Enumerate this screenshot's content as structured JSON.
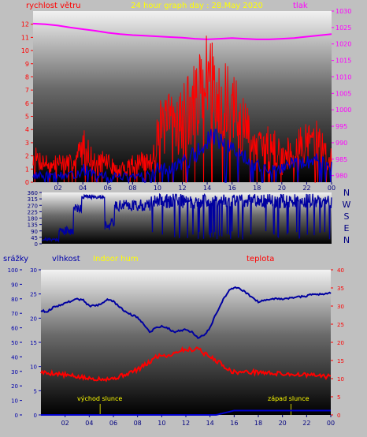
{
  "chart_data": [
    {
      "type": "line",
      "title": "24 hour graph day : 28.May 2020",
      "ylabel_left": "rychlost větru",
      "ylabel_right": "tlak",
      "x_ticks": [
        "02",
        "04",
        "06",
        "08",
        "10",
        "12",
        "14",
        "16",
        "18",
        "20",
        "22",
        "00"
      ],
      "x_range": [
        0,
        24
      ],
      "ylim_left": [
        0,
        13
      ],
      "yticks_left": [
        0,
        1,
        2,
        3,
        4,
        5,
        6,
        7,
        8,
        9,
        10,
        11,
        12
      ],
      "ylim_right": [
        978,
        1030
      ],
      "yticks_right": [
        980,
        985,
        990,
        995,
        1000,
        1005,
        1010,
        1015,
        1020,
        1025,
        1030
      ],
      "series": [
        {
          "role": "pressure",
          "axis": "right",
          "color": "#ff00ff",
          "x": [
            0,
            1,
            2,
            3,
            4,
            5,
            6,
            7,
            8,
            9,
            10,
            11,
            12,
            13,
            14,
            15,
            16,
            17,
            18,
            19,
            20,
            21,
            22,
            23,
            24
          ],
          "values": [
            1026.2,
            1026,
            1025.6,
            1025,
            1024.5,
            1024,
            1023.4,
            1023,
            1022.7,
            1022.5,
            1022.3,
            1022.1,
            1021.9,
            1021.6,
            1021.4,
            1021.6,
            1021.8,
            1021.6,
            1021.4,
            1021.4,
            1021.6,
            1021.8,
            1022.2,
            1022.6,
            1023
          ]
        },
        {
          "role": "wind_gust",
          "axis": "left",
          "color": "#ff0000",
          "seed": 7,
          "x": [
            0,
            1,
            1.5,
            2,
            3,
            3.5,
            4,
            4.5,
            5,
            5.5,
            6,
            6.5,
            7,
            8,
            9,
            9.5,
            10,
            11,
            12,
            13,
            13.5,
            14,
            14.5,
            15,
            15.5,
            16,
            17,
            17.5,
            18,
            18.5,
            19,
            20,
            21,
            22,
            22.5,
            23,
            24
          ],
          "values": [
            1.8,
            1.5,
            1.2,
            1.5,
            1.5,
            1.8,
            2.8,
            2.2,
            1.3,
            1.6,
            1.6,
            1,
            0.8,
            1.5,
            1.5,
            1.4,
            4,
            4.5,
            5,
            6,
            7,
            8.5,
            7,
            6.5,
            6,
            5.5,
            4,
            3.5,
            2.5,
            2.5,
            3,
            2,
            2.5,
            3,
            3.5,
            3,
            1.5
          ],
          "amp": [
            1,
            0.8,
            0.6,
            0.8,
            0.6,
            0.8,
            1.5,
            1,
            0.8,
            0.8,
            0.8,
            0.6,
            0.6,
            0.8,
            0.8,
            0.8,
            2,
            2.5,
            3,
            3,
            3,
            3,
            3,
            3,
            3,
            3,
            2.5,
            2,
            1.5,
            1.5,
            1.5,
            1.5,
            1.5,
            1.5,
            1.5,
            1.5,
            1
          ]
        },
        {
          "role": "wind_avg",
          "axis": "left",
          "color": "#0000cc",
          "seed": 13,
          "x": [
            0,
            2,
            3,
            3.5,
            4,
            4.5,
            5,
            6,
            8,
            9,
            10,
            11,
            12,
            13,
            14,
            14.5,
            15,
            16,
            17,
            18,
            19,
            20,
            21,
            22,
            23,
            24
          ],
          "values": [
            0.5,
            0.5,
            0.5,
            0.6,
            1,
            0.8,
            0.5,
            0.5,
            0.4,
            0.5,
            1,
            1,
            1.5,
            2,
            3,
            3.5,
            3,
            2.5,
            2,
            1.2,
            1,
            1,
            1.5,
            1.5,
            1.8,
            1.5
          ],
          "amp": [
            0.3,
            0.3,
            0.3,
            0.3,
            0.5,
            0.4,
            0.3,
            0.3,
            0.3,
            0.3,
            0.5,
            0.5,
            0.6,
            0.8,
            0.8,
            0.8,
            0.8,
            0.6,
            0.6,
            0.5,
            0.4,
            0.4,
            0.5,
            0.5,
            0.5,
            0.5
          ]
        }
      ]
    },
    {
      "type": "line",
      "title": "",
      "right_labels": [
        "N",
        "W",
        "S",
        "E",
        "N"
      ],
      "x_range": [
        0,
        24
      ],
      "ylim": [
        0,
        360
      ],
      "yticks": [
        0,
        45,
        90,
        135,
        180,
        225,
        270,
        315,
        360
      ],
      "series": [
        {
          "role": "wind_direction",
          "color": "#0000a0",
          "segments": [
            {
              "x0": 0,
              "x1": 1.4,
              "base": 30,
              "amp": 10
            },
            {
              "x0": 1.4,
              "x1": 2.6,
              "base": 90,
              "amp": 30
            },
            {
              "x0": 2.6,
              "x1": 3.3,
              "base": 250,
              "amp": 30
            },
            {
              "x0": 3.3,
              "x1": 5.2,
              "base": 330,
              "amp": 15
            },
            {
              "x0": 5.2,
              "x1": 6,
              "base": 135,
              "amp": 40
            },
            {
              "x0": 6,
              "x1": 9,
              "base": 270,
              "amp": 40
            },
            {
              "x0": 9,
              "x1": 24,
              "base": 300,
              "amp": 50
            }
          ],
          "drops": 90,
          "seed": 21
        }
      ]
    },
    {
      "type": "line",
      "ylabel_left_outer": "srážky",
      "ylabel_left_inner": "vlhkost",
      "legend_indoor": "Indoor hum",
      "ylabel_right": "teplota",
      "annotation_sunrise": "východ slunce",
      "annotation_sunset": "západ slunce",
      "sunrise_hour": 4.9,
      "sunset_hour": 20.7,
      "x_ticks": [
        "02",
        "04",
        "06",
        "08",
        "10",
        "12",
        "14",
        "16",
        "18",
        "20",
        "22",
        "00"
      ],
      "x_range": [
        0,
        24
      ],
      "ylim_precip": [
        0,
        30
      ],
      "yticks_precip": [
        0,
        5,
        10,
        15,
        20,
        25,
        30
      ],
      "ylim_humidity": [
        0,
        100
      ],
      "yticks_humidity": [
        0,
        10,
        20,
        30,
        40,
        50,
        60,
        70,
        80,
        90,
        100
      ],
      "ylim_temp": [
        0,
        40
      ],
      "yticks_temp": [
        0,
        5,
        10,
        15,
        20,
        25,
        30,
        35,
        40
      ],
      "series": [
        {
          "role": "humidity",
          "axis": "humidity",
          "color": "#0000a0",
          "x": [
            0,
            0.5,
            1,
            2,
            3,
            3.5,
            4,
            5,
            5.5,
            6,
            7,
            8,
            8.5,
            9,
            9.5,
            10,
            10.5,
            11,
            11.5,
            12,
            12.5,
            13,
            13.5,
            14,
            14.5,
            15,
            15.5,
            16,
            16.5,
            17,
            17.5,
            18,
            19,
            20,
            21,
            22,
            22.5,
            23,
            24
          ],
          "values": [
            72,
            71,
            74,
            77,
            80,
            79,
            75,
            76,
            80,
            78,
            71,
            67,
            63,
            57,
            60,
            61,
            60,
            57,
            58,
            59,
            57,
            53,
            55,
            60,
            70,
            78,
            85,
            88,
            87,
            84,
            81,
            78,
            80,
            80,
            81,
            82,
            83,
            83,
            84
          ]
        },
        {
          "role": "precip_line",
          "axis": "humidity",
          "color": "#0000cc",
          "x": [
            0,
            13,
            14.5,
            16,
            24
          ],
          "values": [
            0,
            0,
            0,
            3,
            3
          ]
        },
        {
          "role": "temperature",
          "axis": "temp",
          "color": "#ff0000",
          "x": [
            0,
            0.5,
            1,
            2,
            3,
            4,
            5,
            6,
            7,
            8,
            8.5,
            9,
            9.5,
            10,
            10.5,
            11,
            11.5,
            12,
            12.5,
            13,
            13.5,
            14,
            14.5,
            15,
            15.5,
            16,
            17,
            18,
            19,
            20,
            21,
            22,
            23,
            24
          ],
          "values": [
            11.8,
            11.5,
            11.5,
            11,
            10.5,
            10,
            10,
            10,
            11.2,
            12.5,
            13.5,
            14.5,
            16,
            16.5,
            16.3,
            17,
            17.8,
            18,
            18,
            18.5,
            17,
            16,
            15,
            14,
            12.5,
            11.8,
            11.8,
            11.8,
            11.5,
            11.3,
            11.2,
            11,
            10.8,
            10.5
          ]
        }
      ]
    }
  ]
}
